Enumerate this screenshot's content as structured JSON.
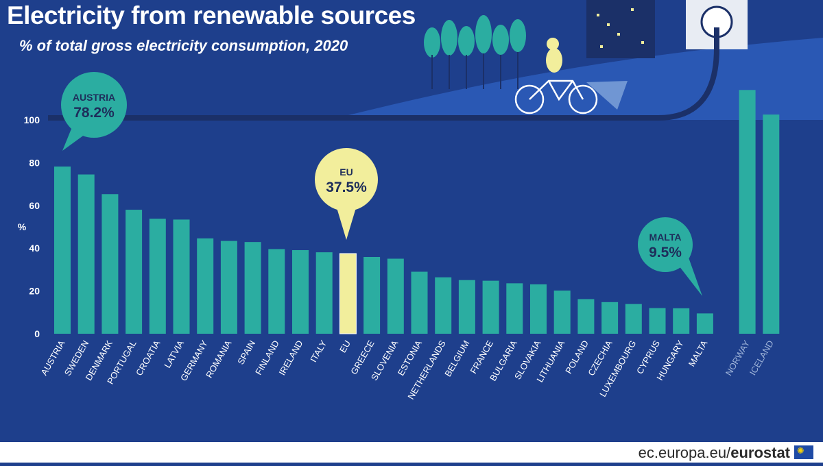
{
  "header": {
    "title": "Electricity from renewable sources",
    "subtitle": "% of total gross electricity consumption, 2020"
  },
  "footer": {
    "site_prefix": "ec.europa.eu/",
    "site_brand": "eurostat"
  },
  "colors": {
    "background": "#1e3f8c",
    "bar": "#2bada1",
    "eu_bar": "#f2ee9c",
    "non_eu_label": "#9fb4d9",
    "callout_teal": "#2bada1",
    "callout_eu": "#f2ee9c"
  },
  "callouts": [
    {
      "country": "AUSTRIA",
      "value_label": "78.2%",
      "target": "AUSTRIA",
      "style": "teal"
    },
    {
      "country": "EU",
      "value_label": "37.5%",
      "target": "EU",
      "style": "eu"
    },
    {
      "country": "MALTA",
      "value_label": "9.5%",
      "target": "MALTA",
      "style": "teal"
    }
  ],
  "chart_data": {
    "type": "bar",
    "title": "Electricity from renewable sources",
    "subtitle": "% of total gross electricity consumption, 2020",
    "ylabel": "%",
    "ylim": [
      0,
      110
    ],
    "yticks": [
      0,
      20,
      40,
      60,
      80,
      100
    ],
    "grid": false,
    "categories": [
      "AUSTRIA",
      "SWEDEN",
      "DENMARK",
      "PORTUGAL",
      "CROATIA",
      "LATVIA",
      "GERMANY",
      "ROMANIA",
      "SPAIN",
      "FINLAND",
      "IRELAND",
      "ITALY",
      "EU",
      "GREECE",
      "SLOVENIA",
      "ESTONIA",
      "NETHERLANDS",
      "BELGIUM",
      "FRANCE",
      "BULGARIA",
      "SLOVAKIA",
      "LITHUANIA",
      "POLAND",
      "CZECHIA",
      "LUXEMBOURG",
      "CYPRUS",
      "HUNGARY",
      "MALTA",
      "NORWAY",
      "ICELAND"
    ],
    "values": [
      78.2,
      74.5,
      65.3,
      58.0,
      53.8,
      53.4,
      44.6,
      43.4,
      42.9,
      39.6,
      39.1,
      38.1,
      37.5,
      35.9,
      35.1,
      29.0,
      26.4,
      25.1,
      24.8,
      23.6,
      23.1,
      20.2,
      16.2,
      14.8,
      13.9,
      12.0,
      11.9,
      9.5,
      114.0,
      102.5
    ],
    "highlight": [
      "EU"
    ],
    "non_eu": [
      "NORWAY",
      "ICELAND"
    ]
  }
}
